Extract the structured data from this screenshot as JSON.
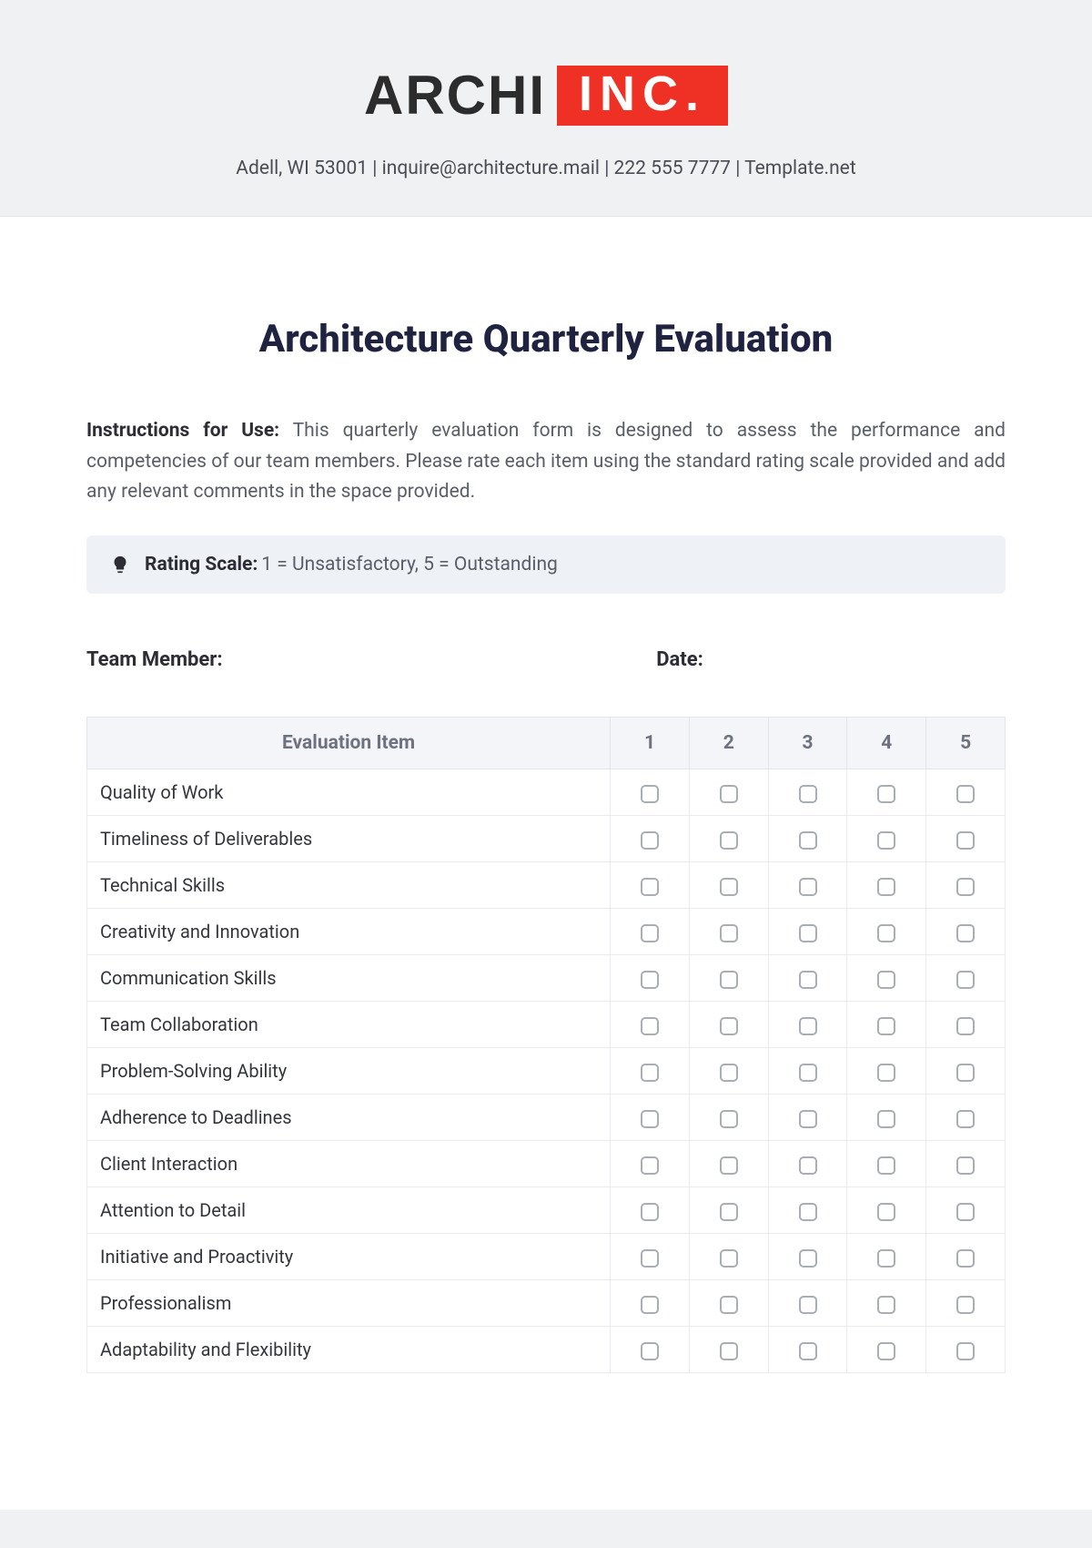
{
  "brand": {
    "name_part1": "ARCHI",
    "name_part2": "INC.",
    "inc_bg_color": "#ee3124",
    "inc_text_color": "#ffffff",
    "archi_color": "#2c2c2c"
  },
  "contact": {
    "address": "Adell, WI 53001",
    "email": "inquire@architecture.mail",
    "phone": "222 555 7777",
    "site": "Template.net",
    "separator": " | "
  },
  "title": "Architecture Quarterly Evaluation",
  "instructions": {
    "label": "Instructions for Use:",
    "text": "This quarterly evaluation form is designed to assess the performance and competencies of our team members. Please rate each item using the standard rating scale provided and add any relevant comments in the space provided."
  },
  "rating_scale": {
    "label": "Rating Scale:",
    "text": "1 = Unsatisfactory, 5 = Outstanding",
    "box_bg": "#eef1f5"
  },
  "meta": {
    "team_label": "Team Member:",
    "date_label": "Date:"
  },
  "table": {
    "header_item": "Evaluation Item",
    "columns": [
      "1",
      "2",
      "3",
      "4",
      "5"
    ],
    "rows": [
      "Quality of Work",
      "Timeliness of Deliverables",
      "Technical Skills",
      "Creativity and Innovation",
      "Communication Skills",
      "Team Collaboration",
      "Problem-Solving Ability",
      "Adherence to Deadlines",
      "Client Interaction",
      "Attention to Detail",
      "Initiative and Proactivity",
      "Professionalism",
      "Adaptability and Flexibility"
    ],
    "header_bg": "#f3f5f8",
    "header_color": "#6d7280",
    "border_color": "#e9ebee",
    "checkbox_border": "#a9adb4"
  },
  "colors": {
    "page_bg": "#ffffff",
    "outer_bg": "#f0f1f2",
    "title_color": "#1f2340",
    "body_text": "#5a5e68"
  }
}
